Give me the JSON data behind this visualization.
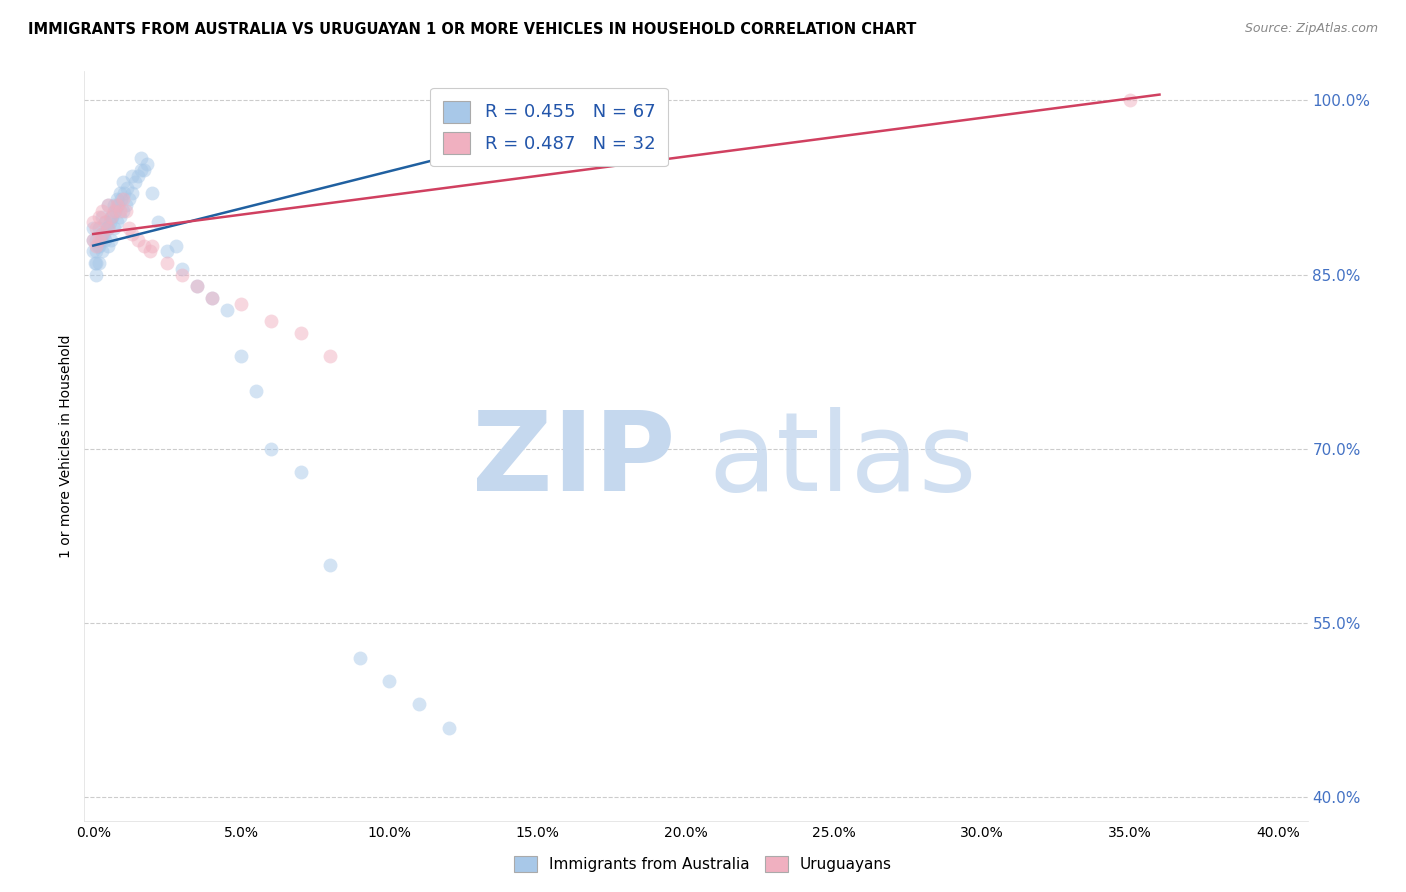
{
  "title": "IMMIGRANTS FROM AUSTRALIA VS URUGUAYAN 1 OR MORE VEHICLES IN HOUSEHOLD CORRELATION CHART",
  "source": "Source: ZipAtlas.com",
  "ylabel": "1 or more Vehicles in Household",
  "legend1_label": "R = 0.455   N = 67",
  "legend2_label": "R = 0.487   N = 32",
  "blue_color": "#a8c8e8",
  "pink_color": "#f0b0c0",
  "blue_line_color": "#2060a0",
  "pink_line_color": "#d04060",
  "blue_scatter_x": [
    0.0,
    0.0,
    0.0,
    0.1,
    0.1,
    0.1,
    0.1,
    0.2,
    0.2,
    0.2,
    0.3,
    0.3,
    0.3,
    0.4,
    0.4,
    0.5,
    0.5,
    0.5,
    0.6,
    0.6,
    0.7,
    0.7,
    0.8,
    0.8,
    0.9,
    0.9,
    1.0,
    1.0,
    1.1,
    1.2,
    1.3,
    1.4,
    1.5,
    1.6,
    1.7,
    1.8,
    2.0,
    2.2,
    2.5,
    2.8,
    3.0,
    3.5,
    4.0,
    4.5,
    5.0,
    5.5,
    6.0,
    7.0,
    8.0,
    9.0,
    10.0,
    11.0,
    12.0,
    0.05,
    0.15,
    0.25,
    0.35,
    0.45,
    0.55,
    0.65,
    0.75,
    0.85,
    0.95,
    1.05,
    1.15,
    1.3,
    1.6
  ],
  "blue_scatter_y": [
    87.0,
    88.0,
    89.0,
    85.0,
    86.0,
    87.0,
    88.0,
    86.0,
    87.5,
    89.0,
    87.0,
    88.5,
    90.0,
    88.0,
    89.5,
    87.5,
    89.0,
    91.0,
    88.0,
    90.0,
    89.0,
    91.0,
    89.5,
    91.5,
    90.0,
    92.0,
    90.5,
    93.0,
    91.0,
    91.5,
    92.0,
    93.0,
    93.5,
    94.0,
    94.0,
    94.5,
    92.0,
    89.5,
    87.0,
    87.5,
    85.5,
    84.0,
    83.0,
    82.0,
    78.0,
    75.0,
    70.0,
    68.0,
    60.0,
    52.0,
    50.0,
    48.0,
    46.0,
    86.0,
    87.5,
    88.0,
    88.5,
    89.0,
    89.5,
    90.0,
    90.5,
    91.0,
    91.5,
    92.0,
    92.5,
    93.5,
    95.0
  ],
  "pink_scatter_x": [
    0.0,
    0.0,
    0.1,
    0.1,
    0.2,
    0.2,
    0.3,
    0.3,
    0.4,
    0.5,
    0.5,
    0.6,
    0.7,
    0.8,
    0.9,
    1.0,
    1.1,
    1.2,
    1.3,
    1.5,
    1.7,
    1.9,
    2.0,
    2.5,
    3.0,
    3.5,
    4.0,
    5.0,
    6.0,
    7.0,
    8.0,
    35.0
  ],
  "pink_scatter_y": [
    88.0,
    89.5,
    87.5,
    89.0,
    88.0,
    90.0,
    88.5,
    90.5,
    89.5,
    89.0,
    91.0,
    90.0,
    90.5,
    91.0,
    90.5,
    91.5,
    90.5,
    89.0,
    88.5,
    88.0,
    87.5,
    87.0,
    87.5,
    86.0,
    85.0,
    84.0,
    83.0,
    82.5,
    81.0,
    80.0,
    78.0,
    100.0
  ],
  "blue_trendline_x": [
    0.0,
    12.5
  ],
  "blue_trendline_y": [
    87.5,
    95.5
  ],
  "pink_trendline_x": [
    0.0,
    36.0
  ],
  "pink_trendline_y": [
    88.5,
    100.5
  ],
  "xlim": [
    -0.3,
    41.0
  ],
  "ylim": [
    38.0,
    102.5
  ],
  "x_ticks": [
    0.0,
    5.0,
    10.0,
    15.0,
    20.0,
    25.0,
    30.0,
    35.0,
    40.0
  ],
  "y_ticks": [
    40.0,
    55.0,
    70.0,
    85.0,
    100.0
  ],
  "marker_size": 100,
  "marker_alpha": 0.5,
  "line_width": 1.8
}
